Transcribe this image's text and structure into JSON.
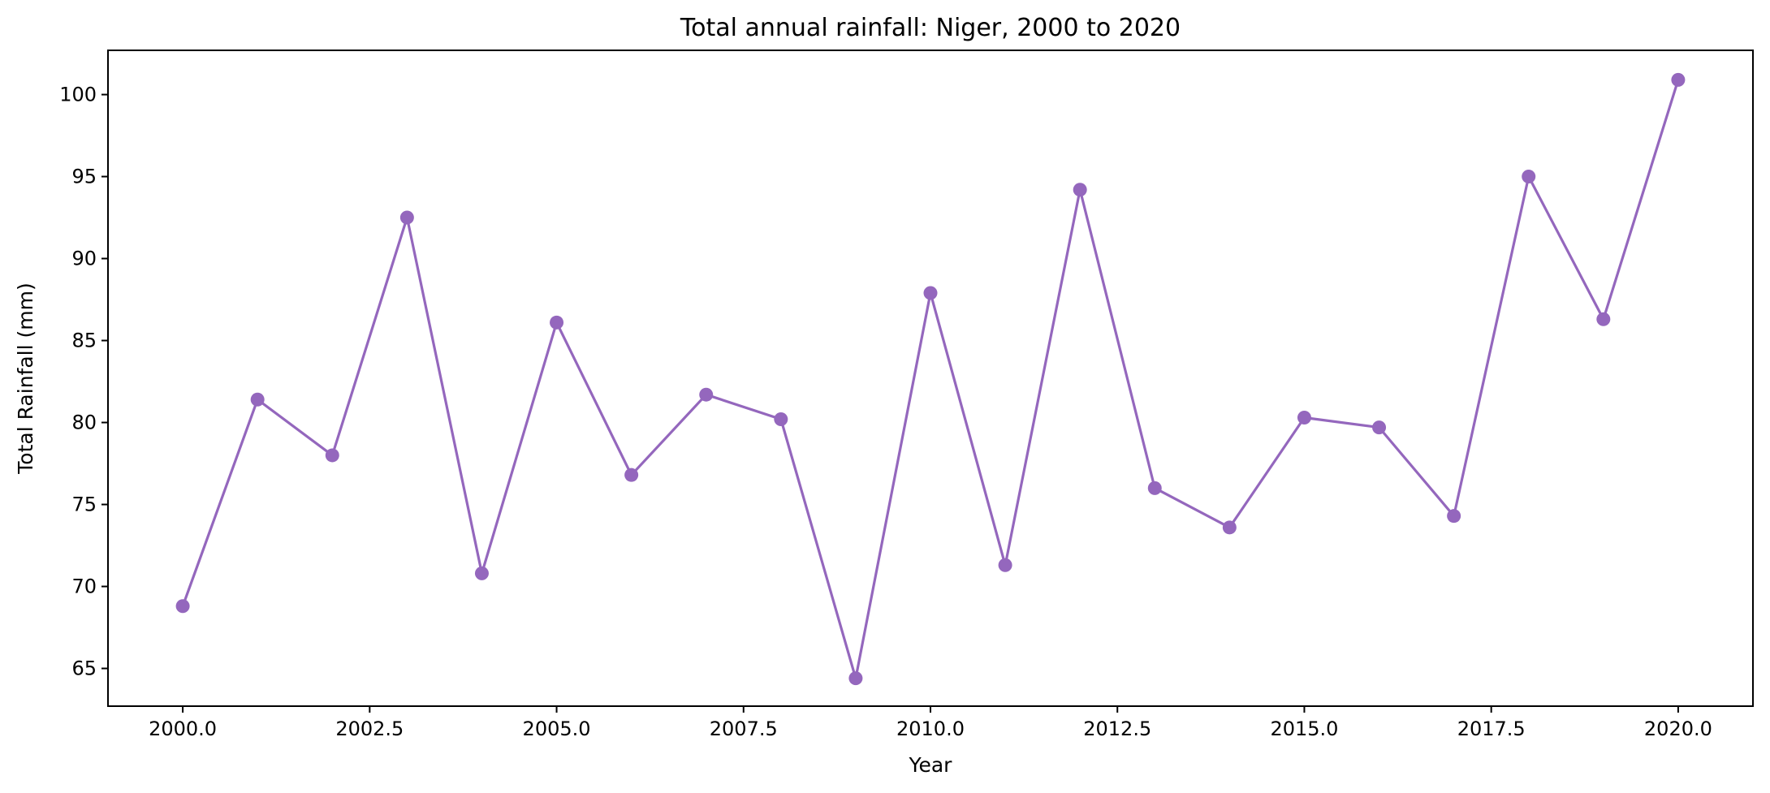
{
  "chart_data": {
    "type": "line",
    "title": "Total annual rainfall: Niger, 2000 to 2020",
    "xlabel": "Year",
    "ylabel": "Total Rainfall (mm)",
    "x": [
      2000,
      2001,
      2002,
      2003,
      2004,
      2005,
      2006,
      2007,
      2008,
      2009,
      2010,
      2011,
      2012,
      2013,
      2014,
      2015,
      2016,
      2017,
      2018,
      2019,
      2020
    ],
    "series": [
      {
        "values": [
          68.8,
          81.4,
          78.0,
          92.5,
          70.8,
          86.1,
          76.8,
          81.7,
          80.2,
          64.4,
          87.9,
          71.3,
          94.2,
          76.0,
          73.6,
          80.3,
          79.7,
          74.3,
          95.0,
          86.3,
          100.9
        ]
      }
    ],
    "xlim": [
      1999.0,
      2021.0
    ],
    "ylim": [
      62.7,
      102.7
    ],
    "xticks": [
      "2000.0",
      "2002.5",
      "2005.0",
      "2007.5",
      "2010.0",
      "2012.5",
      "2015.0",
      "2017.5",
      "2020.0"
    ],
    "yticks": [
      "65",
      "70",
      "75",
      "80",
      "85",
      "90",
      "95",
      "100"
    ],
    "grid": false,
    "marker": "circle",
    "color": "#9467bd"
  }
}
